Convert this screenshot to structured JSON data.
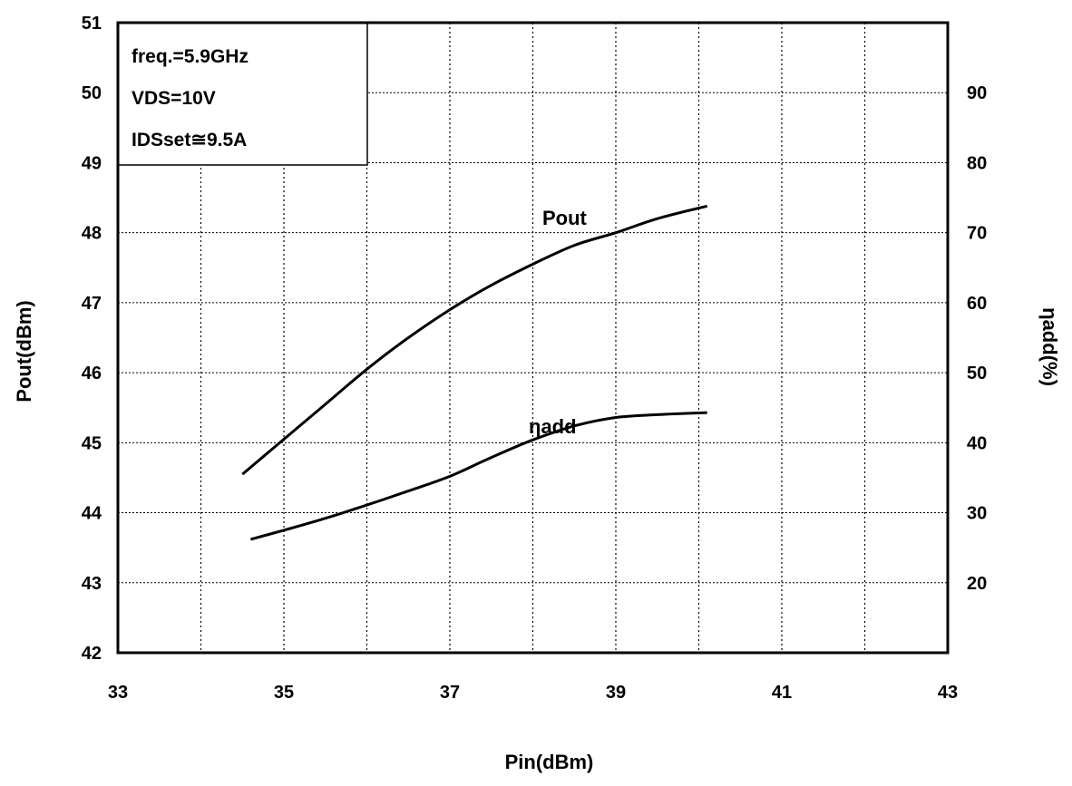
{
  "chart_data": {
    "type": "line",
    "x_axis": {
      "label": "Pin(dBm)",
      "range": [
        33,
        43
      ],
      "ticks": [
        "33",
        "35",
        "37",
        "39",
        "41",
        "43"
      ]
    },
    "y_axis_left": {
      "label": "Pout(dBm)",
      "range": [
        42,
        51
      ],
      "ticks": [
        "42",
        "43",
        "44",
        "45",
        "46",
        "47",
        "48",
        "49",
        "50",
        "51"
      ]
    },
    "y_axis_right": {
      "label": "ηadd(%)",
      "range": [
        10,
        100
      ],
      "ticks": [
        "20",
        "30",
        "40",
        "50",
        "60",
        "70",
        "80",
        "90"
      ]
    },
    "grid": true,
    "conditions": [
      "freq.=5.9GHz",
      "VDS=10V",
      "IDSset≅9.5A"
    ],
    "series": [
      {
        "name": "Pout",
        "axis": "left",
        "x": [
          34.5,
          35.0,
          35.5,
          36.0,
          36.5,
          37.0,
          37.5,
          38.0,
          38.5,
          39.0,
          39.5,
          40.1
        ],
        "y": [
          44.55,
          45.05,
          45.55,
          46.05,
          46.5,
          46.9,
          47.25,
          47.55,
          47.82,
          48.0,
          48.2,
          48.38
        ]
      },
      {
        "name": "ηadd",
        "axis": "right",
        "x": [
          34.6,
          35.0,
          35.5,
          36.0,
          36.5,
          37.0,
          37.5,
          38.0,
          38.5,
          39.0,
          39.5,
          40.1
        ],
        "y": [
          26.2,
          27.5,
          29.2,
          31.1,
          33.1,
          35.2,
          37.9,
          40.4,
          42.4,
          43.6,
          44.0,
          44.3
        ]
      }
    ]
  }
}
